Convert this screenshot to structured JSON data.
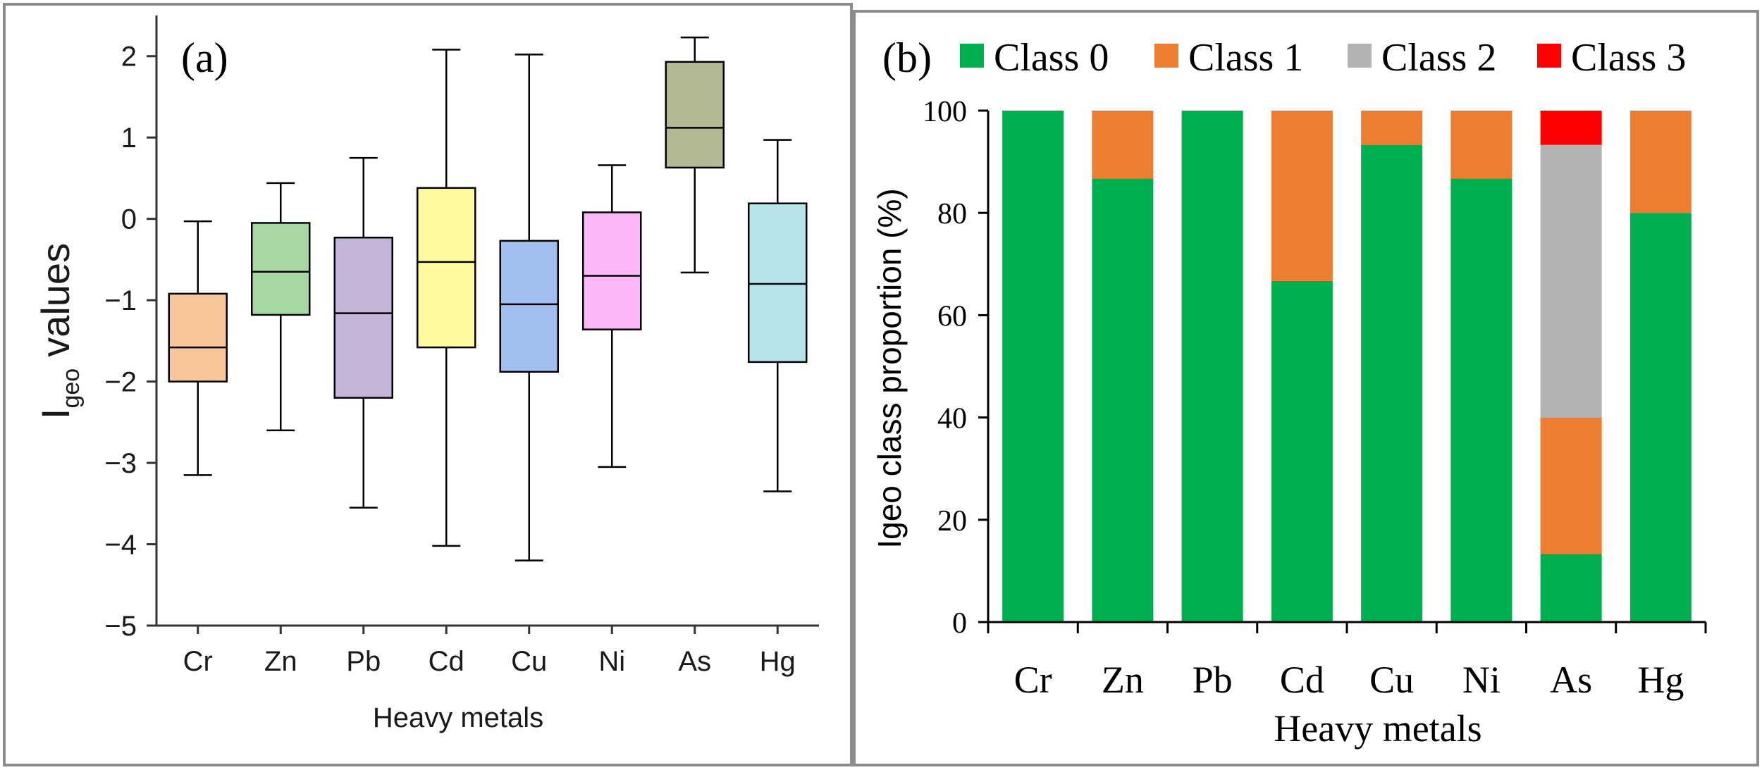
{
  "chart_data": [
    {
      "type": "box",
      "panel_label": "(a)",
      "ylabel": {
        "main": "I",
        "sub": "geo",
        "rest": "values"
      },
      "xlabel": "Heavy metals",
      "ylim": [
        -5,
        2.5
      ],
      "yticks": [
        -5,
        -4,
        -3,
        -2,
        -1,
        0,
        1,
        2
      ],
      "ytick_labels": [
        "−5",
        "−4",
        "−3",
        "−2",
        "−1",
        "0",
        "1",
        "2"
      ],
      "categories": [
        "Cr",
        "Zn",
        "Pb",
        "Cd",
        "Cu",
        "Ni",
        "As",
        "Hg"
      ],
      "boxes": [
        {
          "name": "Cr",
          "min": -3.15,
          "q1": -2.0,
          "median": -1.58,
          "q3": -0.92,
          "max": -0.03,
          "color": "#f9c69a"
        },
        {
          "name": "Zn",
          "min": -2.6,
          "q1": -1.18,
          "median": -0.65,
          "q3": -0.05,
          "max": 0.44,
          "color": "#a7d7a2"
        },
        {
          "name": "Pb",
          "min": -3.55,
          "q1": -2.2,
          "median": -1.16,
          "q3": -0.23,
          "max": 0.75,
          "color": "#c3b4d8"
        },
        {
          "name": "Cd",
          "min": -4.02,
          "q1": -1.58,
          "median": -0.53,
          "q3": 0.38,
          "max": 2.08,
          "color": "#fdfb9e"
        },
        {
          "name": "Cu",
          "min": -4.2,
          "q1": -1.88,
          "median": -1.05,
          "q3": -0.27,
          "max": 2.02,
          "color": "#a2bff1"
        },
        {
          "name": "Ni",
          "min": -3.05,
          "q1": -1.36,
          "median": -0.7,
          "q3": 0.08,
          "max": 0.66,
          "color": "#fdb7f8"
        },
        {
          "name": "As",
          "min": -0.66,
          "q1": 0.63,
          "median": 1.12,
          "q3": 1.93,
          "max": 2.23,
          "color": "#b2b993"
        },
        {
          "name": "Hg",
          "min": -3.35,
          "q1": -1.76,
          "median": -0.8,
          "q3": 0.19,
          "max": 0.97,
          "color": "#b7e3ea"
        }
      ]
    },
    {
      "type": "stacked-bar",
      "panel_label": "(b)",
      "ylabel": "Igeo class proportion (%)",
      "xlabel": "Heavy metals",
      "ylim": [
        0,
        100
      ],
      "yticks": [
        0,
        20,
        40,
        60,
        80,
        100
      ],
      "ytick_labels": [
        "0",
        "20",
        "40",
        "60",
        "80",
        "100"
      ],
      "categories": [
        "Cr",
        "Zn",
        "Pb",
        "Cd",
        "Cu",
        "Ni",
        "As",
        "Hg"
      ],
      "series": [
        {
          "name": "Class 0",
          "color": "#00b050",
          "values": [
            100,
            86.7,
            100,
            66.7,
            93.3,
            86.7,
            13.3,
            80
          ]
        },
        {
          "name": "Class 1",
          "color": "#ed7d31",
          "values": [
            0,
            13.3,
            0,
            33.3,
            6.7,
            13.3,
            26.7,
            20
          ]
        },
        {
          "name": "Class 2",
          "color": "#b3b3b3",
          "values": [
            0,
            0,
            0,
            0,
            0,
            0,
            53.3,
            0
          ]
        },
        {
          "name": "Class 3",
          "color": "#ff0000",
          "values": [
            0,
            0,
            0,
            0,
            0,
            0,
            6.7,
            0
          ]
        }
      ],
      "legend_position": "top"
    }
  ]
}
